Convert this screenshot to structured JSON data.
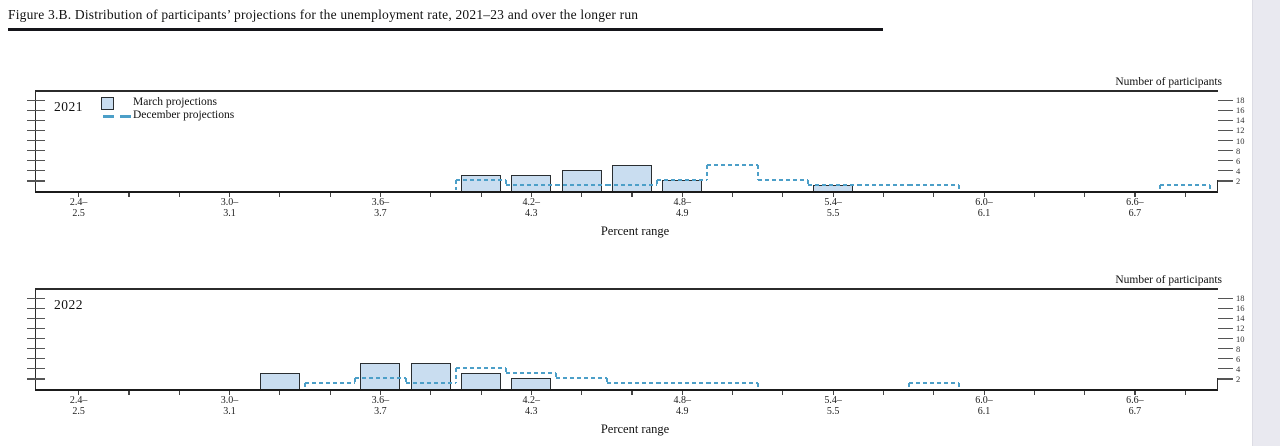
{
  "page": {
    "title": "Figure 3.B. Distribution of participants’ projections for the unemployment rate, 2021–23 and over the longer run"
  },
  "axis": {
    "right_axis_title": "Number of participants",
    "x_axis_title": "Percent range",
    "y_ticks": [
      2,
      4,
      6,
      8,
      10,
      12,
      14,
      16,
      18
    ],
    "y_range": [
      0,
      19
    ],
    "x_minor_ticks": {
      "first": 2.4,
      "last": 6.8,
      "step": 0.2
    },
    "x_tick_labels": [
      {
        "value": 2.4,
        "line1": "2.4–",
        "line2": "2.5"
      },
      {
        "value": 3.0,
        "line1": "3.0–",
        "line2": "3.1"
      },
      {
        "value": 3.6,
        "line1": "3.6–",
        "line2": "3.7"
      },
      {
        "value": 4.2,
        "line1": "4.2–",
        "line2": "4.3"
      },
      {
        "value": 4.8,
        "line1": "4.8–",
        "line2": "4.9"
      },
      {
        "value": 5.4,
        "line1": "5.4–",
        "line2": "5.5"
      },
      {
        "value": 6.0,
        "line1": "6.0–",
        "line2": "6.1"
      },
      {
        "value": 6.6,
        "line1": "6.6–",
        "line2": "6.7"
      }
    ]
  },
  "legend": {
    "march_label": "March projections",
    "december_label": "December projections"
  },
  "colors": {
    "bar_fill": "#c9ddf0",
    "bar_border": "#2a2e31",
    "dashed_line": "#4c9fc8",
    "axis": "#1b1b1b"
  },
  "chart_data": [
    {
      "type": "bar",
      "year": "2021",
      "xlabel": "Percent range",
      "ylabel": "Number of participants",
      "ylim": [
        0,
        19
      ],
      "bin_width": 0.2,
      "series": [
        {
          "name": "March projections",
          "style": "bars",
          "points": [
            {
              "bin": "4.0–4.1",
              "start": 4.0,
              "count": 3
            },
            {
              "bin": "4.2–4.3",
              "start": 4.2,
              "count": 3
            },
            {
              "bin": "4.4–4.5",
              "start": 4.4,
              "count": 4
            },
            {
              "bin": "4.6–4.7",
              "start": 4.6,
              "count": 5
            },
            {
              "bin": "4.8–4.9",
              "start": 4.8,
              "count": 2
            },
            {
              "bin": "5.4–5.5",
              "start": 5.4,
              "count": 1
            }
          ]
        },
        {
          "name": "December projections",
          "style": "dashed-step-outline",
          "points": [
            {
              "bin": "4.0–4.1",
              "start": 4.0,
              "count": 2
            },
            {
              "bin": "4.2–4.3",
              "start": 4.2,
              "count": 1
            },
            {
              "bin": "4.4–4.5",
              "start": 4.4,
              "count": 1
            },
            {
              "bin": "4.6–4.7",
              "start": 4.6,
              "count": 1
            },
            {
              "bin": "4.8–4.9",
              "start": 4.8,
              "count": 2
            },
            {
              "bin": "5.0–5.1",
              "start": 5.0,
              "count": 5
            },
            {
              "bin": "5.2–5.3",
              "start": 5.2,
              "count": 2
            },
            {
              "bin": "5.4–5.5",
              "start": 5.4,
              "count": 1
            },
            {
              "bin": "5.6–5.7",
              "start": 5.6,
              "count": 1
            },
            {
              "bin": "5.8–5.9",
              "start": 5.8,
              "count": 1
            },
            {
              "bin": "6.8–6.9",
              "start": 6.8,
              "count": 1
            }
          ]
        }
      ]
    },
    {
      "type": "bar",
      "year": "2022",
      "xlabel": "Percent range",
      "ylabel": "Number of participants",
      "ylim": [
        0,
        19
      ],
      "bin_width": 0.2,
      "series": [
        {
          "name": "March projections",
          "style": "bars",
          "points": [
            {
              "bin": "3.2–3.3",
              "start": 3.2,
              "count": 3
            },
            {
              "bin": "3.6–3.7",
              "start": 3.6,
              "count": 5
            },
            {
              "bin": "3.8–3.9",
              "start": 3.8,
              "count": 5
            },
            {
              "bin": "4.0–4.1",
              "start": 4.0,
              "count": 3
            },
            {
              "bin": "4.2–4.3",
              "start": 4.2,
              "count": 2
            }
          ]
        },
        {
          "name": "December projections",
          "style": "dashed-step-outline",
          "points": [
            {
              "bin": "3.4–3.5",
              "start": 3.4,
              "count": 1
            },
            {
              "bin": "3.6–3.7",
              "start": 3.6,
              "count": 2
            },
            {
              "bin": "3.8–3.9",
              "start": 3.8,
              "count": 1
            },
            {
              "bin": "4.0–4.1",
              "start": 4.0,
              "count": 4
            },
            {
              "bin": "4.2–4.3",
              "start": 4.2,
              "count": 3
            },
            {
              "bin": "4.4–4.5",
              "start": 4.4,
              "count": 2
            },
            {
              "bin": "4.6–4.7",
              "start": 4.6,
              "count": 1
            },
            {
              "bin": "4.8–4.9",
              "start": 4.8,
              "count": 1
            },
            {
              "bin": "5.0–5.1",
              "start": 5.0,
              "count": 1
            },
            {
              "bin": "5.8–5.9",
              "start": 5.8,
              "count": 1
            }
          ]
        }
      ]
    }
  ]
}
